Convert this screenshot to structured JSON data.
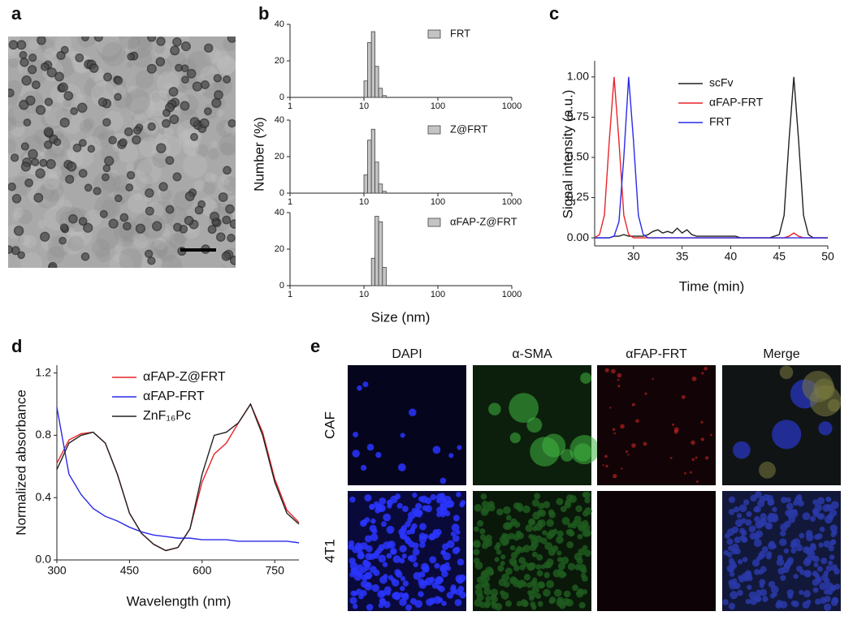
{
  "panel_labels": [
    "a",
    "b",
    "c",
    "d",
    "e"
  ],
  "chart_data": [
    {
      "type": "histogram",
      "log_x": true,
      "xlim": [
        1,
        1000
      ],
      "xticks": [
        1,
        10,
        100,
        1000
      ],
      "ylim": [
        0,
        40
      ],
      "yticks": [
        0,
        20,
        40
      ],
      "bins": [
        10,
        11.2,
        12.6,
        14.1,
        15.8,
        17.8,
        20
      ],
      "series": [
        {
          "name": "FRT",
          "color": "#c4c4c4",
          "values": [
            9,
            30,
            36,
            17,
            5,
            1
          ]
        }
      ]
    },
    {
      "type": "histogram",
      "log_x": true,
      "ylabel": "Number (%)",
      "xlim": [
        1,
        1000
      ],
      "xticks": [
        1,
        10,
        100,
        1000
      ],
      "ylim": [
        0,
        40
      ],
      "yticks": [
        0,
        20,
        40
      ],
      "bins": [
        10,
        11.2,
        12.6,
        14.1,
        15.8,
        17.8,
        20
      ],
      "series": [
        {
          "name": "Z@FRT",
          "color": "#c4c4c4",
          "values": [
            10,
            29,
            35,
            17,
            5,
            1
          ]
        }
      ]
    },
    {
      "type": "histogram",
      "log_x": true,
      "xlabel": "Size (nm)",
      "xlim": [
        1,
        1000
      ],
      "xticks": [
        1,
        10,
        100,
        1000
      ],
      "ylim": [
        0,
        40
      ],
      "yticks": [
        0,
        20,
        40
      ],
      "bins": [
        12.6,
        14.1,
        15.8,
        17.8,
        20
      ],
      "series": [
        {
          "name": "αFAP-Z@FRT",
          "color": "#c4c4c4",
          "values": [
            15,
            38,
            35,
            10
          ]
        }
      ]
    },
    {
      "type": "line",
      "xlabel": "Time (min)",
      "ylabel": "Signal intensity (a.u.)",
      "xlim": [
        26,
        50
      ],
      "xticks": [
        30,
        35,
        40,
        45,
        50
      ],
      "ylim": [
        -0.05,
        1.1
      ],
      "yticks": [
        {
          "value": 0,
          "label": "0.00"
        },
        {
          "value": 0.25,
          "label": "0.25"
        },
        {
          "value": 0.5,
          "label": "0.50"
        },
        {
          "value": 0.75,
          "label": "0.75"
        },
        {
          "value": 1,
          "label": "1.00"
        }
      ],
      "x": [
        26,
        26.5,
        27,
        27.5,
        28,
        28.5,
        29,
        29.5,
        30,
        30.5,
        31,
        31.5,
        32,
        32.5,
        33,
        33.5,
        34,
        34.5,
        35,
        35.5,
        36,
        36.5,
        37,
        37.5,
        38,
        38.5,
        39,
        39.5,
        40,
        40.5,
        41,
        41.5,
        42,
        42.5,
        43,
        43.5,
        44,
        44.5,
        45,
        45.5,
        46,
        46.5,
        47,
        47.5,
        48,
        48.5,
        49,
        49.5,
        50
      ],
      "series": [
        {
          "name": "scFv",
          "color": "#222222",
          "values": [
            0,
            0,
            0,
            0,
            0.01,
            0.01,
            0.02,
            0.01,
            0.01,
            0.01,
            0.01,
            0.02,
            0.04,
            0.05,
            0.03,
            0.04,
            0.03,
            0.06,
            0.03,
            0.05,
            0.02,
            0.01,
            0.01,
            0.01,
            0.01,
            0.01,
            0.01,
            0.01,
            0.01,
            0.01,
            0,
            0,
            0,
            0,
            0,
            0,
            0,
            0.01,
            0.02,
            0.14,
            0.6,
            1.0,
            0.6,
            0.14,
            0.02,
            0,
            0,
            0,
            0
          ]
        },
        {
          "name": "αFAP-FRT",
          "color": "#e8242a",
          "values": [
            0,
            0.02,
            0.14,
            0.6,
            1.0,
            0.6,
            0.14,
            0.02,
            0,
            0,
            0,
            0,
            0,
            0,
            0,
            0,
            0,
            0,
            0,
            0,
            0,
            0,
            0,
            0,
            0,
            0,
            0,
            0,
            0,
            0,
            0,
            0,
            0,
            0,
            0,
            0,
            0,
            0,
            0,
            0,
            0.01,
            0.03,
            0.01,
            0,
            0,
            0,
            0,
            0,
            0
          ]
        },
        {
          "name": "FRT",
          "color": "#2a2ae8",
          "values": [
            0,
            0,
            0,
            0,
            0.01,
            0.1,
            0.5,
            1.0,
            0.6,
            0.14,
            0.02,
            0,
            0,
            0,
            0,
            0,
            0,
            0,
            0,
            0,
            0,
            0,
            0,
            0,
            0,
            0,
            0,
            0,
            0,
            0,
            0,
            0,
            0,
            0,
            0,
            0,
            0,
            0,
            0,
            0,
            0,
            0,
            0,
            0,
            0,
            0,
            0,
            0,
            0
          ]
        }
      ]
    },
    {
      "type": "line",
      "xlabel": "Wavelength (nm)",
      "ylabel": "Normalized absorbance",
      "xlim": [
        300,
        800
      ],
      "xticks": [
        300,
        450,
        600,
        750
      ],
      "ylim": [
        0,
        1.25
      ],
      "yticks": [
        {
          "value": 0,
          "label": "0.0"
        },
        {
          "value": 0.4,
          "label": "0.4"
        },
        {
          "value": 0.8,
          "label": "0.8"
        },
        {
          "value": 1.2,
          "label": "1.2"
        }
      ],
      "x": [
        300,
        325,
        350,
        375,
        400,
        425,
        450,
        475,
        500,
        525,
        550,
        575,
        600,
        625,
        650,
        675,
        700,
        725,
        750,
        775,
        800
      ],
      "series": [
        {
          "name": "αFAP-Z@FRT",
          "color": "#e8242a",
          "values": [
            0.62,
            0.77,
            0.81,
            0.82,
            0.75,
            0.55,
            0.3,
            0.17,
            0.1,
            0.06,
            0.08,
            0.2,
            0.5,
            0.68,
            0.75,
            0.88,
            1.0,
            0.82,
            0.52,
            0.32,
            0.24
          ]
        },
        {
          "name": "αFAP-FRT",
          "color": "#2a2ae8",
          "values": [
            0.98,
            0.55,
            0.42,
            0.33,
            0.28,
            0.25,
            0.21,
            0.18,
            0.16,
            0.15,
            0.14,
            0.14,
            0.13,
            0.13,
            0.13,
            0.12,
            0.12,
            0.12,
            0.12,
            0.12,
            0.11
          ]
        },
        {
          "name": "ZnF₁₆Pc",
          "color": "#222222",
          "values": [
            0.58,
            0.75,
            0.8,
            0.82,
            0.75,
            0.55,
            0.3,
            0.17,
            0.1,
            0.06,
            0.08,
            0.2,
            0.55,
            0.8,
            0.82,
            0.88,
            1.0,
            0.8,
            0.5,
            0.3,
            0.23
          ]
        }
      ]
    }
  ],
  "microscopy": {
    "columns": [
      "DAPI",
      "α-SMA",
      "αFAP-FRT",
      "Merge"
    ],
    "rows": [
      "CAF",
      "4T1"
    ]
  }
}
